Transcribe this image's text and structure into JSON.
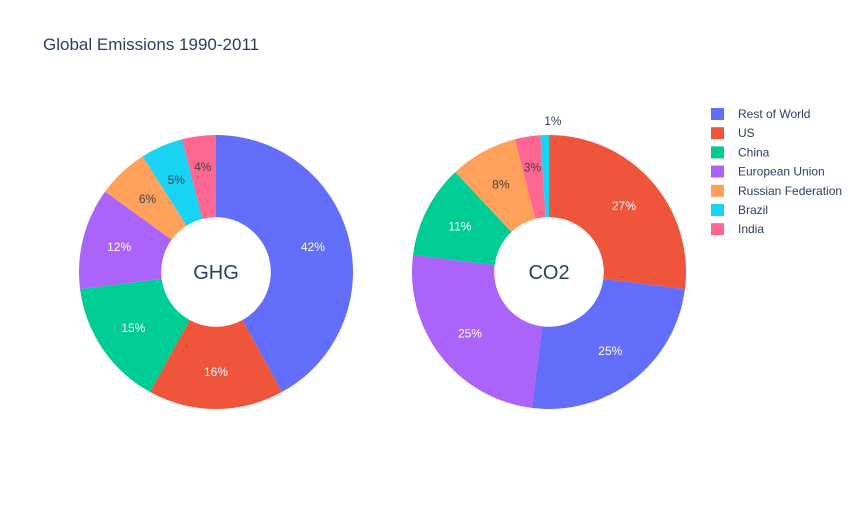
{
  "chart_data": {
    "type": "pie",
    "title": "Global Emissions 1990-2011",
    "legend_position": "top-right",
    "legend": [
      {
        "name": "Rest of World",
        "color": "#636efa"
      },
      {
        "name": "US",
        "color": "#ef553b"
      },
      {
        "name": "China",
        "color": "#00cc96"
      },
      {
        "name": "European Union",
        "color": "#ab63fa"
      },
      {
        "name": "Russian Federation",
        "color": "#ffa15a"
      },
      {
        "name": "Brazil",
        "color": "#19d3f3"
      },
      {
        "name": "India",
        "color": "#ff6692"
      }
    ],
    "charts": [
      {
        "center_label": "GHG",
        "hole": 0.4,
        "slices": [
          {
            "name": "Rest of World",
            "value": 42,
            "label": "42%"
          },
          {
            "name": "US",
            "value": 16,
            "label": "16%"
          },
          {
            "name": "China",
            "value": 15,
            "label": "15%"
          },
          {
            "name": "European Union",
            "value": 12,
            "label": "12%"
          },
          {
            "name": "Russian Federation",
            "value": 6,
            "label": "6%"
          },
          {
            "name": "Brazil",
            "value": 5,
            "label": "5%"
          },
          {
            "name": "India",
            "value": 4,
            "label": "4%"
          }
        ]
      },
      {
        "center_label": "CO2",
        "hole": 0.4,
        "slices": [
          {
            "name": "US",
            "value": 27,
            "label": "27%"
          },
          {
            "name": "Rest of World",
            "value": 25,
            "label": "25%"
          },
          {
            "name": "European Union",
            "value": 25,
            "label": "25%"
          },
          {
            "name": "China",
            "value": 11,
            "label": "11%"
          },
          {
            "name": "Russian Federation",
            "value": 8,
            "label": "8%"
          },
          {
            "name": "India",
            "value": 3,
            "label": "3%"
          },
          {
            "name": "Brazil",
            "value": 1,
            "label": "1%"
          }
        ]
      }
    ]
  }
}
